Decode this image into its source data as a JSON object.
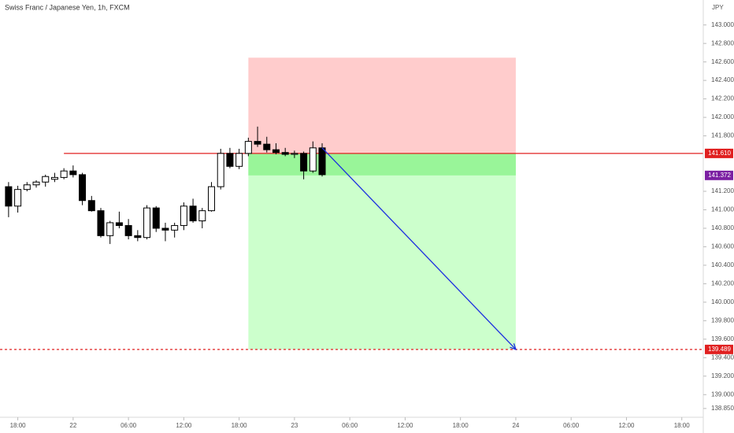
{
  "chart_data": {
    "type": "candlestick",
    "title": "Swiss Franc / Japanese Yen, 1h, FXCM",
    "currency": "JPY",
    "x": [
      -7,
      -6,
      -5,
      -4,
      -3,
      -2,
      -1,
      0,
      1,
      2,
      3,
      4,
      5,
      6,
      7,
      8,
      9,
      10,
      11,
      12,
      13,
      14,
      15,
      16,
      17,
      18,
      19,
      20,
      21,
      22,
      23,
      24,
      25,
      26,
      27
    ],
    "open": [
      141.25,
      141.04,
      141.22,
      141.27,
      141.3,
      141.33,
      141.35,
      141.42,
      141.38,
      141.1,
      140.99,
      140.72,
      140.86,
      140.83,
      140.72,
      140.7,
      141.02,
      140.8,
      140.78,
      140.83,
      141.04,
      140.88,
      140.99,
      141.25,
      141.61,
      141.47,
      141.61,
      141.74,
      141.71,
      141.65,
      141.62,
      141.6,
      141.61,
      141.42,
      141.67
    ],
    "high": [
      141.3,
      141.26,
      141.3,
      141.32,
      141.38,
      141.4,
      141.45,
      141.48,
      141.4,
      141.15,
      141.02,
      140.88,
      140.98,
      140.9,
      140.78,
      141.05,
      141.04,
      140.86,
      140.86,
      141.08,
      141.12,
      141.02,
      141.3,
      141.66,
      141.67,
      141.66,
      141.78,
      141.9,
      141.79,
      141.72,
      141.67,
      141.64,
      141.63,
      141.74,
      141.72
    ],
    "low": [
      140.92,
      140.97,
      141.2,
      141.24,
      141.25,
      141.3,
      141.33,
      141.35,
      141.05,
      140.98,
      140.7,
      140.63,
      140.8,
      140.68,
      140.66,
      140.68,
      140.76,
      140.66,
      140.7,
      140.78,
      140.86,
      140.8,
      140.98,
      141.22,
      141.45,
      141.44,
      141.58,
      141.68,
      141.62,
      141.6,
      141.58,
      141.56,
      141.33,
      141.4,
      141.36
    ],
    "close": [
      141.04,
      141.22,
      141.27,
      141.3,
      141.36,
      141.35,
      141.42,
      141.38,
      141.1,
      140.99,
      140.72,
      140.86,
      140.83,
      140.72,
      140.7,
      141.02,
      140.8,
      140.78,
      140.83,
      141.04,
      140.88,
      140.99,
      141.25,
      141.61,
      141.47,
      141.61,
      141.74,
      141.71,
      141.65,
      141.62,
      141.6,
      141.61,
      141.42,
      141.67,
      141.38
    ],
    "up_color": "#ffffff",
    "down_color": "#000000",
    "wick_color": "#000000",
    "xlim": [
      -7.93,
      68.33
    ],
    "xticks": [
      {
        "value": -6,
        "label": "18:00"
      },
      {
        "value": 0,
        "label": "22"
      },
      {
        "value": 6,
        "label": "06:00"
      },
      {
        "value": 12,
        "label": "12:00"
      },
      {
        "value": 18,
        "label": "18:00"
      },
      {
        "value": 24,
        "label": "23"
      },
      {
        "value": 30,
        "label": "06:00"
      },
      {
        "value": 36,
        "label": "12:00"
      },
      {
        "value": 42,
        "label": "18:00"
      },
      {
        "value": 48,
        "label": "24"
      },
      {
        "value": 54,
        "label": "06:00"
      },
      {
        "value": 60,
        "label": "12:00"
      },
      {
        "value": 66,
        "label": "18:00"
      }
    ],
    "ylim": [
      138.67,
      143.27
    ],
    "yticks": [
      {
        "value": 143,
        "label": "143.000"
      },
      {
        "value": 142.8,
        "label": "142.800"
      },
      {
        "value": 142.6,
        "label": "142.600"
      },
      {
        "value": 142.4,
        "label": "142.400"
      },
      {
        "value": 142.2,
        "label": "142.200"
      },
      {
        "value": 142,
        "label": "142.000"
      },
      {
        "value": 141.8,
        "label": "141.800"
      },
      {
        "value": 141.2,
        "label": "141.200"
      },
      {
        "value": 141,
        "label": "141.000"
      },
      {
        "value": 140.8,
        "label": "140.800"
      },
      {
        "value": 140.6,
        "label": "140.600"
      },
      {
        "value": 140.4,
        "label": "140.400"
      },
      {
        "value": 140.2,
        "label": "140.200"
      },
      {
        "value": 140,
        "label": "140.000"
      },
      {
        "value": 139.8,
        "label": "139.800"
      },
      {
        "value": 139.6,
        "label": "139.600"
      },
      {
        "value": 139.4,
        "label": "139.400"
      },
      {
        "value": 139.2,
        "label": "139.200"
      },
      {
        "value": 139,
        "label": "139.000"
      },
      {
        "value": 138.85,
        "label": "138.850"
      }
    ],
    "position": {
      "entry": 141.61,
      "stop": 142.646,
      "target": 139.489,
      "x": [
        19,
        48
      ],
      "stop_color": "#ffcccc",
      "target_color": "#ccffcc",
      "filled_color": "#99f599"
    },
    "horizontal_lines": [
      {
        "value": 141.61,
        "label": "141.610",
        "color": "#e02020",
        "style": "solid",
        "x_start": -1
      },
      {
        "value": 139.489,
        "label": "139.489",
        "color": "#e02020",
        "style": "dashed",
        "x_start": -7.93
      }
    ],
    "last_price": {
      "value": 141.372,
      "label": "141.372",
      "color": "#7b1fa2"
    },
    "arrow": {
      "x": [
        27,
        48
      ],
      "y": [
        141.67,
        139.489
      ],
      "color": "#1a2ee0"
    }
  }
}
